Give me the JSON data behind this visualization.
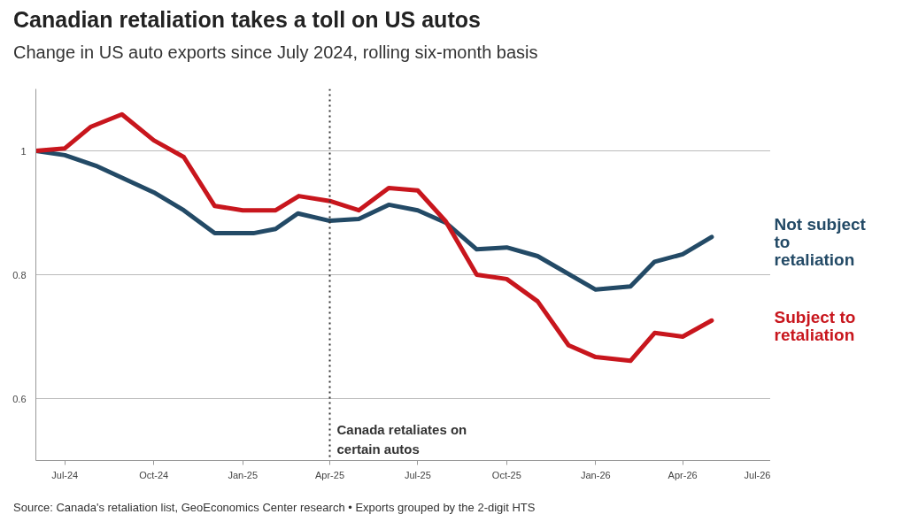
{
  "chart_data": {
    "type": "line",
    "title": "Canadian retaliation takes a toll on US autos",
    "subtitle": "Change in US auto exports since July 2024, rolling six-month basis",
    "series": [
      {
        "name": "Not subject to retaliation",
        "color": "#234a66",
        "x": [
          "2024-06-01",
          "2024-07-01",
          "2024-08-02",
          "2024-10-01",
          "2024-11-01",
          "2024-12-03",
          "2025-01-12",
          "2025-02-04",
          "2025-02-27",
          "2025-04-01",
          "2025-05-01",
          "2025-06-01",
          "2025-07-01",
          "2025-07-30",
          "2025-08-31",
          "2025-10-01",
          "2025-11-02",
          "2026-01-01",
          "2026-02-06",
          "2026-03-03",
          "2026-04-01",
          "2026-05-01"
        ],
        "values": [
          1.0,
          0.993,
          0.976,
          0.933,
          0.904,
          0.867,
          0.867,
          0.874,
          0.899,
          0.887,
          0.89,
          0.913,
          0.904,
          0.884,
          0.841,
          0.844,
          0.83,
          0.776,
          0.781,
          0.821,
          0.833,
          0.861
        ]
      },
      {
        "name": "Subject to retaliation",
        "color": "#c8161d",
        "x": [
          "2024-06-01",
          "2024-07-01",
          "2024-07-28",
          "2024-08-29",
          "2024-10-01",
          "2024-11-01",
          "2024-12-03",
          "2025-01-01",
          "2025-02-04",
          "2025-02-28",
          "2025-04-01",
          "2025-05-01",
          "2025-06-01",
          "2025-07-01",
          "2025-07-30",
          "2025-08-31",
          "2025-10-01",
          "2025-11-02",
          "2025-12-04",
          "2026-01-01",
          "2026-02-06",
          "2026-03-03",
          "2026-04-01",
          "2026-05-01"
        ],
        "values": [
          1.0,
          1.004,
          1.039,
          1.059,
          1.017,
          0.99,
          0.911,
          0.904,
          0.904,
          0.927,
          0.919,
          0.904,
          0.94,
          0.936,
          0.886,
          0.8,
          0.793,
          0.757,
          0.686,
          0.667,
          0.661,
          0.706,
          0.7,
          0.726
        ]
      }
    ],
    "xlim": [
      "2024-06-01",
      "2026-07-01"
    ],
    "xticks": [
      {
        "value": "2024-07",
        "label": "Jul-24"
      },
      {
        "value": "2024-10",
        "label": "Oct-24"
      },
      {
        "value": "2025-01",
        "label": "Jan-25"
      },
      {
        "value": "2025-04",
        "label": "Apr-25"
      },
      {
        "value": "2025-07",
        "label": "Jul-25"
      },
      {
        "value": "2025-10",
        "label": "Oct-25"
      },
      {
        "value": "2026-01",
        "label": "Jan-26"
      },
      {
        "value": "2026-04",
        "label": "Apr-26"
      },
      {
        "value": "2026-07",
        "label": "Jul-26"
      }
    ],
    "ylim": [
      0.5,
      1.1
    ],
    "yticks": [
      0.6,
      0.8,
      1
    ],
    "grid": "y",
    "legend": false,
    "line_style": "solid",
    "marker": "none",
    "ref_lines": [
      {
        "axis": "x",
        "value": "2025-04-01",
        "label": "Canada retaliates on certain autos",
        "color": "#333333",
        "line_style": "dotted"
      }
    ],
    "annotations": [
      "Source: Canada's retaliation list, GeoEconomics Center research • Exports grouped by the 2-digit HTS"
    ]
  }
}
